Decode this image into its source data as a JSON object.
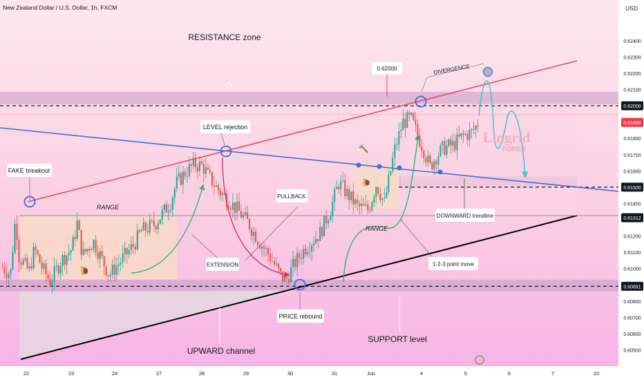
{
  "chart_data": {
    "type": "candlestick",
    "title": "New Zealand Dollar / U.S. Dollar, 1h, FXCM",
    "currency": "USD",
    "ylim": [
      0.604,
      0.6265
    ],
    "y_ticks": [
      0.624,
      0.623,
      0.622,
      0.621,
      0.62,
      0.61898,
      0.618,
      0.617,
      0.616,
      0.615,
      0.614,
      0.61312,
      0.612,
      0.611,
      0.61,
      0.60891,
      0.608,
      0.607,
      0.606,
      0.605
    ],
    "y_tick_labels": [
      "0.62400",
      "0.62300",
      "0.62200",
      "0.62100",
      "0.62000",
      "0.61898",
      "0.61800",
      "0.61700",
      "0.61600",
      "0.61500",
      "0.61400",
      "0.61312",
      "0.61200",
      "0.61100",
      "0.61000",
      "0.60891",
      "0.60800",
      "0.60700",
      "0.60600",
      "0.60500"
    ],
    "highlighted_levels": [
      {
        "value": 0.62,
        "label": "0.62000",
        "color": "#131722"
      },
      {
        "value": 0.61898,
        "label": "0.61898",
        "color": "#f23645"
      },
      {
        "value": 0.615,
        "label": "0.61500",
        "color": "#131722"
      },
      {
        "value": 0.61312,
        "label": "0.61312",
        "color": "#131722"
      },
      {
        "value": 0.60891,
        "label": "0.60891",
        "color": "#131722"
      }
    ],
    "x_ticks": [
      "22",
      "23",
      "24",
      "27",
      "28",
      "29",
      "30",
      "31",
      "Jun",
      "4",
      "5",
      "6",
      "7",
      "10"
    ],
    "price_path": [
      [
        0.6101,
        0
      ],
      [
        0.6096,
        1.5
      ],
      [
        0.6133,
        2.5
      ],
      [
        0.6108,
        3
      ],
      [
        0.6098,
        5
      ],
      [
        0.6112,
        6
      ],
      [
        0.61,
        7.5
      ],
      [
        0.6092,
        9
      ],
      [
        0.6105,
        11
      ],
      [
        0.6112,
        13
      ],
      [
        0.6128,
        14
      ],
      [
        0.6108,
        15
      ],
      [
        0.6117,
        17
      ],
      [
        0.6096,
        20
      ],
      [
        0.6104,
        22
      ],
      [
        0.6114,
        24.5
      ],
      [
        0.6123,
        26
      ],
      [
        0.6127,
        28.5
      ],
      [
        0.6134,
        30
      ],
      [
        0.6141,
        31.5
      ],
      [
        0.6152,
        32.5
      ],
      [
        0.616,
        34.5
      ],
      [
        0.6164,
        36
      ],
      [
        0.6163,
        37.5
      ],
      [
        0.6157,
        38.5
      ],
      [
        0.6148,
        40.5
      ],
      [
        0.6143,
        42
      ],
      [
        0.6136,
        44
      ],
      [
        0.6128,
        46
      ],
      [
        0.6117,
        48
      ],
      [
        0.6108,
        50
      ],
      [
        0.6096,
        52
      ],
      [
        0.6092,
        53
      ],
      [
        0.6102,
        54.5
      ],
      [
        0.6112,
        56.5
      ],
      [
        0.6122,
        59.5
      ],
      [
        0.6137,
        61.5
      ],
      [
        0.6153,
        63
      ],
      [
        0.6146,
        64.5
      ],
      [
        0.6138,
        66.5
      ],
      [
        0.6136,
        68.5
      ],
      [
        0.6152,
        70
      ],
      [
        0.614,
        71.5
      ],
      [
        0.6157,
        72.5
      ],
      [
        0.6174,
        73.5
      ],
      [
        0.619,
        75
      ],
      [
        0.6192,
        76.5
      ],
      [
        0.6184,
        77.5
      ],
      [
        0.6172,
        79
      ],
      [
        0.6162,
        80
      ],
      [
        0.6168,
        81
      ],
      [
        0.6174,
        82.5
      ],
      [
        0.6176,
        84.5
      ],
      [
        0.6181,
        86
      ],
      [
        0.6184,
        88
      ],
      [
        0.6189,
        89
      ]
    ],
    "annotations": [
      "RESISTANCE zone",
      "FAKE breakout",
      "LEVEL rejection",
      "RANGE",
      "PULLBACK",
      "EXTENSION",
      "PRICE rebound",
      "UPWARD channel",
      "SUPPORT level",
      "DIVERGENCE",
      "0.62000",
      "DOWNWARD trendline",
      "RANGE",
      "1-2-3 point move"
    ],
    "watermark": {
      "text": "Lingrid",
      "subtext": "FOREX"
    }
  },
  "colors": {
    "background_top": "#fbe3ea",
    "background_bottom": "#f7b8e8",
    "candle_up": "#26a69a",
    "candle_down": "#ef5350",
    "resistance_line": "#e84a5f",
    "downward_line": "#3b6fd6",
    "channel_line": "#000000",
    "zone_fill": "#c79ac3",
    "range_fill": "#f7dcc6",
    "circle": "#3d6fe0",
    "arrow_green": "#2bb673",
    "arrow_red": "#d6346a",
    "projection": "#43c6d6"
  }
}
